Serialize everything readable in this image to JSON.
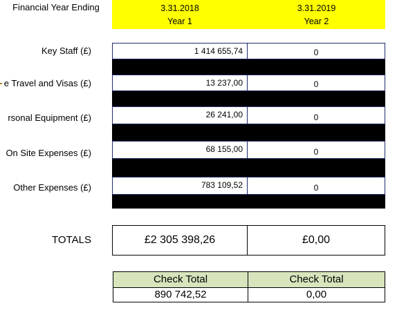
{
  "header": {
    "label": "Financial Year Ending",
    "columns": [
      {
        "date": "3.31.2018",
        "year": "Year 1"
      },
      {
        "date": "3.31.2019",
        "year": "Year 2"
      }
    ]
  },
  "rows": [
    {
      "label": "Key Staff (£)",
      "year1": "1 414 655,74",
      "year2": "0"
    },
    {
      "label": "e Travel and Visas (£)",
      "year1": "13 237,00",
      "year2": "0"
    },
    {
      "label": "rsonal Equipment (£)",
      "year1": "26 241,00",
      "year2": "0"
    },
    {
      "label": "On Site Expenses (£)",
      "year1": "68 155,00",
      "year2": "0"
    },
    {
      "label": "Other Expenses (£)",
      "year1": "783 109,52",
      "year2": "0"
    }
  ],
  "totals": {
    "label": "TOTALS",
    "year1": "£2 305 398,26",
    "year2": "£0,00"
  },
  "check": {
    "header1": "Check Total",
    "header2": "Check Total",
    "value1": "890 742,52",
    "value2": "0,00"
  },
  "colors": {
    "header_bg": "#ffff00",
    "check_header_bg": "#d8e4bc",
    "cell_border": "#1f2a6b"
  }
}
